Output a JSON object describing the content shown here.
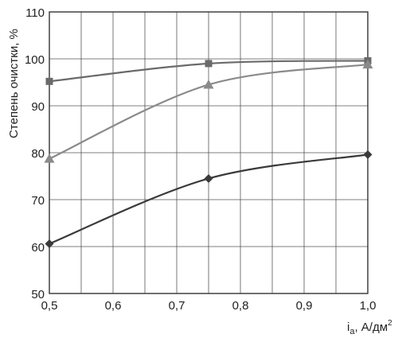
{
  "chart_data": {
    "type": "line",
    "title": "",
    "ylabel": "Степень очистки, %",
    "xlabel_main": "i",
    "xlabel_sub": "а",
    "xlabel_rest": ", А/дм",
    "xlabel_sup": "2",
    "xlim": [
      0.5,
      1.0
    ],
    "ylim": [
      50,
      110
    ],
    "grid": true,
    "x_ticks": [
      0.5,
      0.6,
      0.7,
      0.8,
      0.9,
      1.0
    ],
    "x_tick_labels": [
      "0,5",
      "0,6",
      "0,7",
      "0,8",
      "0,9",
      "1,0"
    ],
    "y_ticks": [
      50,
      60,
      70,
      80,
      90,
      100,
      110
    ],
    "y_tick_labels": [
      "50",
      "60",
      "70",
      "80",
      "90",
      "100",
      "110"
    ],
    "series": [
      {
        "marker": "square",
        "color": "#6a6a6a",
        "x": [
          0.5,
          0.75,
          1.0
        ],
        "y": [
          95.2,
          99.0,
          99.6
        ]
      },
      {
        "marker": "triangle",
        "color": "#8a8a8a",
        "x": [
          0.5,
          0.75,
          1.0
        ],
        "y": [
          78.7,
          94.5,
          98.8
        ]
      },
      {
        "marker": "diamond",
        "color": "#3a3a3a",
        "x": [
          0.5,
          0.75,
          1.0
        ],
        "y": [
          60.6,
          74.5,
          79.6
        ]
      }
    ]
  }
}
